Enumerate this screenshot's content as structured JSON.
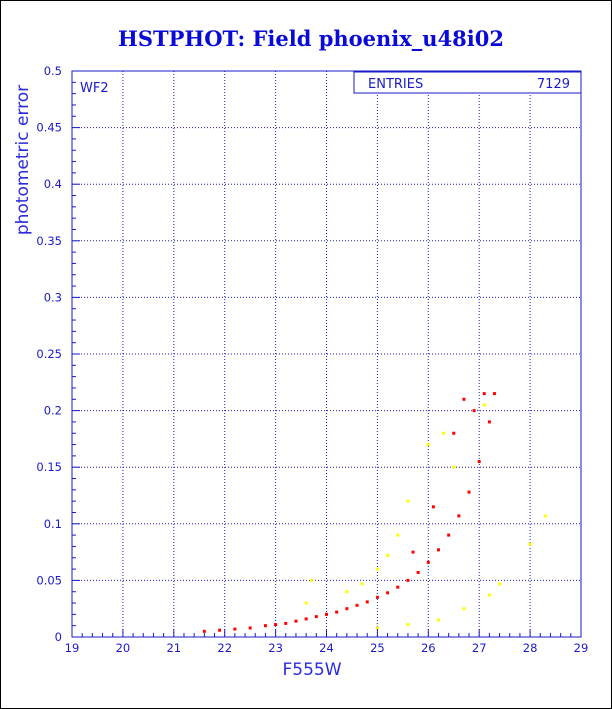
{
  "chart_data": {
    "type": "scatter",
    "title": "HSTPHOT: Field phoenix_u48i02",
    "xlabel": "F555W",
    "ylabel": "photometric error",
    "panel_label": "WF2",
    "stats_box": {
      "label": "ENTRIES",
      "value": "7129"
    },
    "xlim": [
      19,
      29
    ],
    "ylim": [
      0,
      0.5
    ],
    "x_ticks": [
      "19",
      "20",
      "21",
      "22",
      "23",
      "24",
      "25",
      "26",
      "27",
      "28",
      "29"
    ],
    "y_ticks": [
      "0",
      "0.05",
      "0.1",
      "0.15",
      "0.2",
      "0.25",
      "0.3",
      "0.35",
      "0.4",
      "0.45",
      "0.5"
    ],
    "grid": true,
    "series": [
      {
        "color": "#ff0000",
        "points": [
          [
            21.6,
            0.005
          ],
          [
            21.9,
            0.006
          ],
          [
            22.2,
            0.007
          ],
          [
            22.5,
            0.008
          ],
          [
            22.8,
            0.01
          ],
          [
            23.0,
            0.011
          ],
          [
            23.2,
            0.012
          ],
          [
            23.4,
            0.014
          ],
          [
            23.6,
            0.016
          ],
          [
            23.8,
            0.018
          ],
          [
            24.0,
            0.02
          ],
          [
            24.2,
            0.022
          ],
          [
            24.4,
            0.025
          ],
          [
            24.6,
            0.028
          ],
          [
            24.8,
            0.031
          ],
          [
            25.0,
            0.035
          ],
          [
            25.2,
            0.039
          ],
          [
            25.4,
            0.044
          ],
          [
            25.6,
            0.05
          ],
          [
            25.8,
            0.057
          ],
          [
            26.0,
            0.066
          ],
          [
            26.2,
            0.077
          ],
          [
            26.4,
            0.09
          ],
          [
            26.6,
            0.107
          ],
          [
            26.8,
            0.128
          ],
          [
            27.0,
            0.155
          ],
          [
            27.2,
            0.19
          ],
          [
            27.3,
            0.215
          ],
          [
            26.9,
            0.2
          ],
          [
            26.5,
            0.18
          ],
          [
            26.7,
            0.21
          ],
          [
            27.1,
            0.215
          ],
          [
            26.1,
            0.115
          ],
          [
            25.7,
            0.075
          ]
        ]
      },
      {
        "color": "#ffff00",
        "points": [
          [
            23.6,
            0.03
          ],
          [
            23.7,
            0.05
          ],
          [
            24.4,
            0.04
          ],
          [
            24.7,
            0.047
          ],
          [
            25.0,
            0.06
          ],
          [
            25.2,
            0.072
          ],
          [
            25.4,
            0.09
          ],
          [
            25.6,
            0.12
          ],
          [
            26.0,
            0.17
          ],
          [
            26.3,
            0.18
          ],
          [
            26.5,
            0.15
          ],
          [
            27.1,
            0.205
          ],
          [
            25.0,
            0.008
          ],
          [
            25.6,
            0.011
          ],
          [
            26.2,
            0.015
          ],
          [
            26.7,
            0.025
          ],
          [
            27.2,
            0.037
          ],
          [
            27.4,
            0.047
          ],
          [
            28.0,
            0.082
          ],
          [
            28.3,
            0.107
          ]
        ]
      }
    ]
  }
}
